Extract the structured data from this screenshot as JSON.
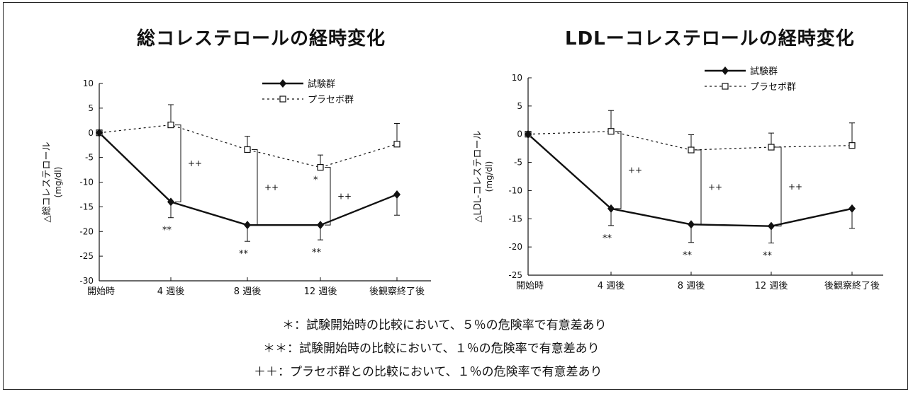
{
  "chart_data": [
    {
      "type": "line",
      "title": "総コレステロールの経時変化",
      "ylabel": "△総コレステロール\n(mg/dl)",
      "ylim": [
        -30,
        10
      ],
      "yticks": [
        10,
        5,
        0,
        -5,
        -10,
        -15,
        -20,
        -25,
        -30
      ],
      "categories": [
        "開始時",
        "4 週後",
        "8 週後",
        "12 週後",
        "後観察終了後"
      ],
      "series": [
        {
          "name": "試験群",
          "marker": "filled-diamond",
          "style": "solid",
          "values": [
            0,
            -14,
            -18.7,
            -18.7,
            -12.5
          ],
          "err_low": [
            0,
            3.2,
            3.3,
            3.0,
            4.2
          ],
          "annotations": [
            "",
            "**",
            "**",
            "**",
            ""
          ]
        },
        {
          "name": "プラセボ群",
          "marker": "open-square",
          "style": "dotted",
          "values": [
            0,
            1.6,
            -3.4,
            -7.0,
            -2.3
          ],
          "err_high": [
            0,
            4.1,
            2.7,
            2.5,
            4.2
          ],
          "annotations": [
            "",
            "",
            "",
            "*",
            ""
          ]
        }
      ],
      "brackets": [
        {
          "between": [
            "4 週後",
            "8 週後"
          ],
          "label": "++"
        },
        {
          "between": [
            "8 週後",
            "12 週後"
          ],
          "label": "++"
        },
        {
          "between": [
            "12 週後",
            "後観察終了後"
          ],
          "label": "++"
        }
      ],
      "legend": "top-right"
    },
    {
      "type": "line",
      "title": "LDLーコレステロールの経時変化",
      "ylabel": "△LDL-コレステロール\n(mg/dl)",
      "ylim": [
        -25,
        10
      ],
      "yticks": [
        10,
        5,
        0,
        -5,
        -10,
        -15,
        -20,
        -25
      ],
      "categories": [
        "開始時",
        "4 週後",
        "8 週後",
        "12 週後",
        "後観察終了後"
      ],
      "series": [
        {
          "name": "試験群",
          "marker": "filled-diamond",
          "style": "solid",
          "values": [
            0,
            -13.2,
            -16.0,
            -16.3,
            -13.2
          ],
          "err_low": [
            0,
            3.0,
            3.2,
            3.0,
            3.5
          ],
          "annotations": [
            "",
            "**",
            "**",
            "**",
            ""
          ]
        },
        {
          "name": "プラセボ群",
          "marker": "open-square",
          "style": "dotted",
          "values": [
            0,
            0.5,
            -2.8,
            -2.3,
            -2.0
          ],
          "err_high": [
            0,
            3.7,
            2.7,
            2.5,
            4.0
          ],
          "annotations": [
            "",
            "",
            "",
            "",
            ""
          ]
        }
      ],
      "brackets": [
        {
          "between": [
            "4 週後",
            "8 週後"
          ],
          "label": "++"
        },
        {
          "between": [
            "8 週後",
            "12 週後"
          ],
          "label": "++"
        },
        {
          "between": [
            "12 週後",
            "後観察終了後"
          ],
          "label": "++"
        }
      ],
      "legend": "top-right"
    }
  ],
  "notes": {
    "n1": "＊：試験開始時の比較において、５％の危険率で有意差あり",
    "n2": "＊＊：試験開始時の比較において、１％の危険率で有意差あり",
    "n3": "＋＋：プラセボ群との比較において、１％の危険率で有意差あり"
  }
}
